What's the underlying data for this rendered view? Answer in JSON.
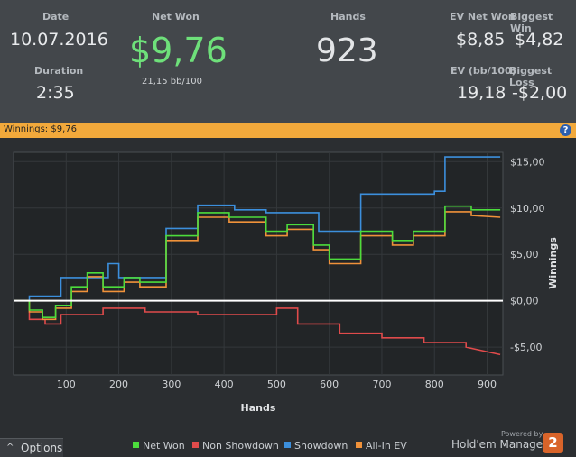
{
  "stats": {
    "date_label": "Date",
    "date_value": "10.07.2016",
    "duration_label": "Duration",
    "duration_value": "2:35",
    "netwon_label": "Net Won",
    "netwon_value": "$9,76",
    "netwon_sub": "21,15 bb/100",
    "hands_label": "Hands",
    "hands_value": "923",
    "evnetwon_label": "EV Net Won",
    "evnetwon_value": "$8,85",
    "ev100_label": "EV (bb/100)",
    "ev100_value": "19,18",
    "bigwin_label": "Biggest Win",
    "bigwin_value": "$4,82",
    "bigloss_label": "Biggest Loss",
    "bigloss_value": "-$2,00"
  },
  "bar": {
    "text": "Winnings: $9,76",
    "help_icon": "?"
  },
  "footer": {
    "options_icon": "^",
    "options_label": "Options",
    "powered_by": "Powered by",
    "brand": "Hold'em Manager",
    "brand_badge": "2"
  },
  "chart_data": {
    "type": "line",
    "xlabel": "Hands",
    "ylabel": "Winnings",
    "xlim": [
      0,
      930
    ],
    "ylim": [
      -8,
      16
    ],
    "x_ticks": [
      100,
      200,
      300,
      400,
      500,
      600,
      700,
      800,
      900
    ],
    "y_ticks": [
      15,
      10,
      5,
      0,
      -5
    ],
    "y_tick_labels": [
      "$15,00",
      "$10,00",
      "$5,00",
      "$0,00",
      "-$5,00"
    ],
    "legend_position": "bottom",
    "series": [
      {
        "name": "Net Won",
        "color": "#4cdc3c",
        "points": [
          [
            0,
            0
          ],
          [
            30,
            0
          ],
          [
            30,
            -1
          ],
          [
            55,
            -1
          ],
          [
            55,
            -1.8
          ],
          [
            80,
            -1.8
          ],
          [
            80,
            -0.5
          ],
          [
            110,
            -0.5
          ],
          [
            110,
            1.5
          ],
          [
            140,
            1.5
          ],
          [
            140,
            3
          ],
          [
            170,
            3
          ],
          [
            170,
            1.5
          ],
          [
            210,
            1.5
          ],
          [
            210,
            2.5
          ],
          [
            240,
            2.5
          ],
          [
            240,
            2
          ],
          [
            290,
            2
          ],
          [
            290,
            7
          ],
          [
            350,
            7
          ],
          [
            350,
            9.5
          ],
          [
            410,
            9.5
          ],
          [
            410,
            9
          ],
          [
            480,
            9
          ],
          [
            480,
            7.5
          ],
          [
            520,
            7.5
          ],
          [
            520,
            8.2
          ],
          [
            570,
            8.2
          ],
          [
            570,
            6
          ],
          [
            600,
            6
          ],
          [
            600,
            4.5
          ],
          [
            660,
            4.5
          ],
          [
            660,
            7.5
          ],
          [
            720,
            7.5
          ],
          [
            720,
            6.5
          ],
          [
            760,
            6.5
          ],
          [
            760,
            7.5
          ],
          [
            820,
            7.5
          ],
          [
            820,
            10.2
          ],
          [
            870,
            10.2
          ],
          [
            870,
            9.8
          ],
          [
            925,
            9.8
          ]
        ]
      },
      {
        "name": "Non Showdown",
        "color": "#e04b4b",
        "points": [
          [
            0,
            0
          ],
          [
            30,
            0
          ],
          [
            30,
            -2
          ],
          [
            60,
            -2
          ],
          [
            60,
            -2.5
          ],
          [
            90,
            -2.5
          ],
          [
            90,
            -1.5
          ],
          [
            170,
            -1.5
          ],
          [
            170,
            -0.8
          ],
          [
            250,
            -0.8
          ],
          [
            250,
            -1.2
          ],
          [
            350,
            -1.2
          ],
          [
            350,
            -1.5
          ],
          [
            500,
            -1.5
          ],
          [
            500,
            -0.8
          ],
          [
            540,
            -0.8
          ],
          [
            540,
            -2.5
          ],
          [
            620,
            -2.5
          ],
          [
            620,
            -3.5
          ],
          [
            700,
            -3.5
          ],
          [
            700,
            -4
          ],
          [
            780,
            -4
          ],
          [
            780,
            -4.5
          ],
          [
            860,
            -4.5
          ],
          [
            860,
            -5
          ],
          [
            925,
            -5.8
          ]
        ]
      },
      {
        "name": "Showdown",
        "color": "#3c8fdc",
        "points": [
          [
            0,
            0
          ],
          [
            30,
            0
          ],
          [
            30,
            0.5
          ],
          [
            90,
            0.5
          ],
          [
            90,
            2.5
          ],
          [
            180,
            2.5
          ],
          [
            180,
            4
          ],
          [
            200,
            4
          ],
          [
            200,
            2.5
          ],
          [
            290,
            2.5
          ],
          [
            290,
            7.8
          ],
          [
            350,
            7.8
          ],
          [
            350,
            10.3
          ],
          [
            420,
            10.3
          ],
          [
            420,
            9.8
          ],
          [
            480,
            9.8
          ],
          [
            480,
            9.5
          ],
          [
            580,
            9.5
          ],
          [
            580,
            7.5
          ],
          [
            660,
            7.5
          ],
          [
            660,
            11.5
          ],
          [
            800,
            11.5
          ],
          [
            800,
            11.8
          ],
          [
            820,
            11.8
          ],
          [
            820,
            15.5
          ],
          [
            925,
            15.5
          ]
        ]
      },
      {
        "name": "All-In EV",
        "color": "#f0923a",
        "points": [
          [
            0,
            0
          ],
          [
            30,
            0
          ],
          [
            30,
            -1.2
          ],
          [
            55,
            -1.2
          ],
          [
            55,
            -2
          ],
          [
            80,
            -2
          ],
          [
            80,
            -0.8
          ],
          [
            110,
            -0.8
          ],
          [
            110,
            1
          ],
          [
            140,
            1
          ],
          [
            140,
            2.6
          ],
          [
            170,
            2.6
          ],
          [
            170,
            1
          ],
          [
            210,
            1
          ],
          [
            210,
            2
          ],
          [
            240,
            2
          ],
          [
            240,
            1.5
          ],
          [
            290,
            1.5
          ],
          [
            290,
            6.5
          ],
          [
            350,
            6.5
          ],
          [
            350,
            9
          ],
          [
            410,
            9
          ],
          [
            410,
            8.5
          ],
          [
            480,
            8.5
          ],
          [
            480,
            7
          ],
          [
            520,
            7
          ],
          [
            520,
            7.7
          ],
          [
            570,
            7.7
          ],
          [
            570,
            5.5
          ],
          [
            600,
            5.5
          ],
          [
            600,
            4
          ],
          [
            660,
            4
          ],
          [
            660,
            7
          ],
          [
            720,
            7
          ],
          [
            720,
            6
          ],
          [
            760,
            6
          ],
          [
            760,
            7
          ],
          [
            820,
            7
          ],
          [
            820,
            9.6
          ],
          [
            870,
            9.6
          ],
          [
            870,
            9.2
          ],
          [
            925,
            9
          ]
        ]
      }
    ]
  }
}
